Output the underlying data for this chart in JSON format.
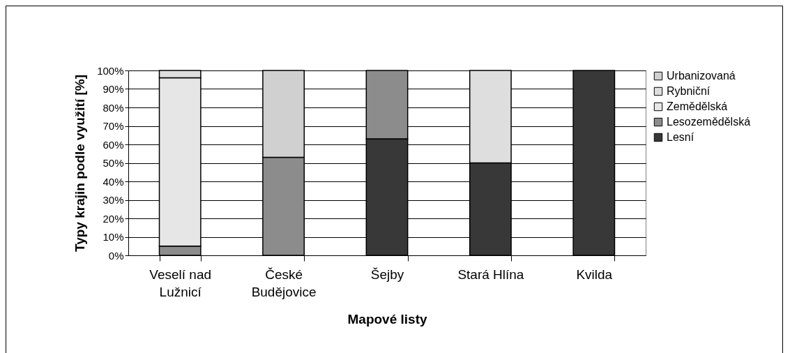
{
  "chart_data": {
    "type": "bar",
    "stacked": true,
    "xlabel": "Mapové listy",
    "ylabel": "Typy krajin podle využití [%]",
    "categories": [
      "Veselí nad Lužnicí",
      "České Budějovice",
      "Šejby",
      "Stará Hlína",
      "Kvilda"
    ],
    "series": [
      {
        "name": "Lesní",
        "color": "#383838",
        "values": [
          0,
          0,
          63,
          50,
          100
        ]
      },
      {
        "name": "Lesozemědělská",
        "color": "#8c8c8c",
        "values": [
          5,
          53,
          37,
          0,
          0
        ]
      },
      {
        "name": "Zemědělská",
        "color": "#e6e6e6",
        "values": [
          91,
          0,
          0,
          0,
          0
        ]
      },
      {
        "name": "Rybniční",
        "color": "#dedede",
        "values": [
          4,
          0,
          0,
          50,
          0
        ]
      },
      {
        "name": "Urbanizovaná",
        "color": "#d0d0d0",
        "values": [
          0,
          47,
          0,
          0,
          0
        ]
      }
    ],
    "ylim": [
      0,
      100
    ],
    "yticks": [
      {
        "value": 0,
        "label": "0%"
      },
      {
        "value": 10,
        "label": "10%"
      },
      {
        "value": 20,
        "label": "20%"
      },
      {
        "value": 30,
        "label": "30%"
      },
      {
        "value": 40,
        "label": "40%"
      },
      {
        "value": 50,
        "label": "50%"
      },
      {
        "value": 60,
        "label": "60%"
      },
      {
        "value": 70,
        "label": "70%"
      },
      {
        "value": 80,
        "label": "80%"
      },
      {
        "value": 90,
        "label": "90%"
      },
      {
        "value": 100,
        "label": "100%"
      }
    ],
    "grid": "y",
    "legend": "right"
  }
}
